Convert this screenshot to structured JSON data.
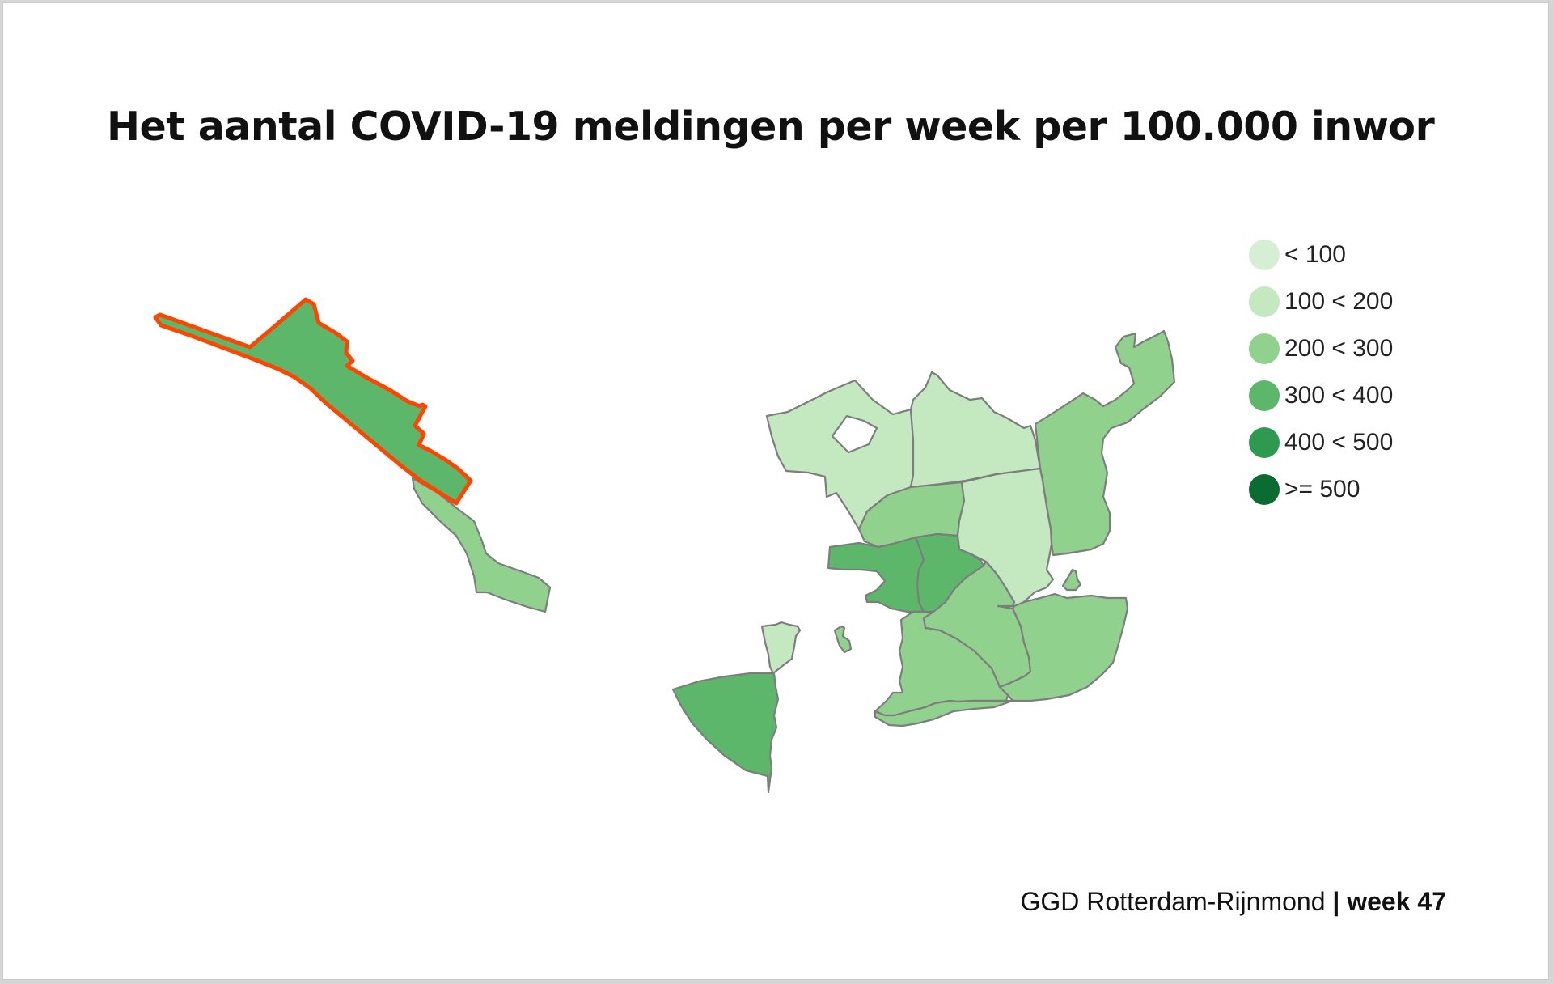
{
  "title": "Het aantal COVID-19 meldingen per week per 100.000 inwor",
  "legend": {
    "items": [
      {
        "label": "< 100",
        "color": "#d6efd4"
      },
      {
        "label": "100 < 200",
        "color": "#c4e8c0"
      },
      {
        "label": "200 < 300",
        "color": "#91d18e"
      },
      {
        "label": "300 < 400",
        "color": "#5cb76a"
      },
      {
        "label": "400 < 500",
        "color": "#2e9a4f"
      },
      {
        "label": ">= 500",
        "color": "#0b6c32"
      }
    ]
  },
  "footer": {
    "source": "GGD Rotterdam-Rijnmond",
    "separator": "|",
    "week": "week 47"
  },
  "map_style": {
    "selected_outline_color": "#ff4500",
    "border_color": "#7d7d7d"
  },
  "regions": [
    {
      "id": "hoek-van-holland",
      "class": "300 < 400",
      "selected": true
    },
    {
      "id": "coastal-strip",
      "class": "200 < 300"
    },
    {
      "id": "northwest",
      "class": "100 < 200"
    },
    {
      "id": "north-center",
      "class": "100 < 200"
    },
    {
      "id": "northeast",
      "class": "200 < 300"
    },
    {
      "id": "center-north",
      "class": "200 < 300"
    },
    {
      "id": "east-center",
      "class": "100 < 200"
    },
    {
      "id": "west-center",
      "class": "300 < 400"
    },
    {
      "id": "center",
      "class": "300 < 400"
    },
    {
      "id": "southeast-center",
      "class": "200 < 300"
    },
    {
      "id": "south-center",
      "class": "200 < 300"
    },
    {
      "id": "southeast",
      "class": "200 < 300"
    },
    {
      "id": "south",
      "class": "200 < 300"
    },
    {
      "id": "small-west",
      "class": "100 < 200"
    },
    {
      "id": "tiny-island",
      "class": "200 < 300"
    },
    {
      "id": "small-east",
      "class": "200 < 300"
    },
    {
      "id": "southwest",
      "class": "300 < 400"
    }
  ]
}
